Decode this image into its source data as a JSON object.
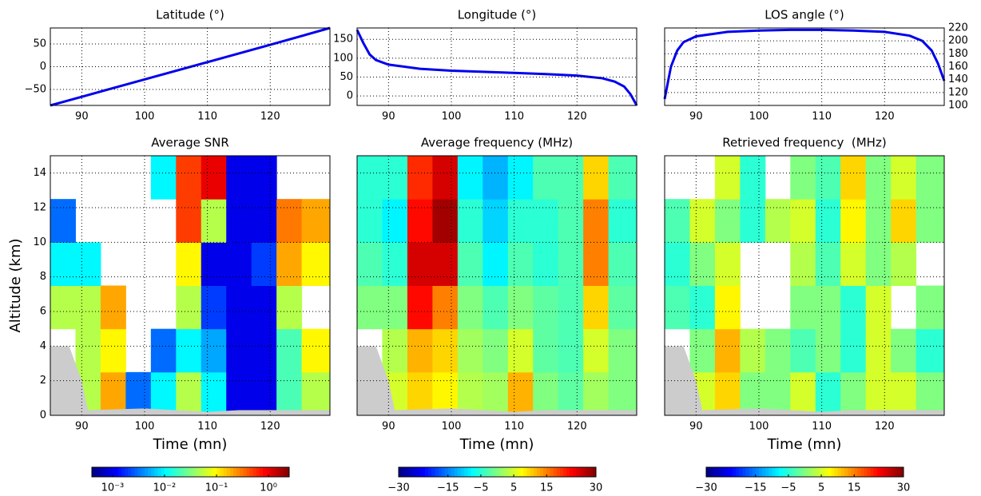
{
  "chart_data": [
    {
      "type": "line",
      "title": "Latitude (°)",
      "color": "#0000ee",
      "x": [
        85,
        90,
        100,
        110,
        120,
        129.5
      ],
      "values": [
        -85,
        -66,
        -28,
        10,
        48,
        85
      ],
      "xlim": [
        85,
        129.5
      ],
      "xticks": [
        90,
        100,
        110,
        120
      ],
      "ylim": [
        -85,
        85
      ],
      "yticks": [
        {
          "value": -50,
          "label": "−50"
        },
        0,
        50
      ],
      "yaxis": "left",
      "grid": true
    },
    {
      "type": "line",
      "title": "Longitude (°)",
      "color": "#0000ee",
      "x": [
        85,
        86,
        87,
        88,
        90,
        95,
        100,
        105,
        110,
        115,
        120,
        124,
        126,
        127.5,
        128.5,
        129.5
      ],
      "values": [
        175,
        140,
        110,
        95,
        83,
        72,
        67,
        64,
        61,
        58,
        54,
        47,
        38,
        25,
        5,
        -25
      ],
      "xlim": [
        85,
        129.5
      ],
      "xticks": [
        90,
        100,
        110,
        120
      ],
      "ylim": [
        -25,
        180
      ],
      "yticks": [
        0,
        50,
        100,
        150
      ],
      "yaxis": "left",
      "grid": true
    },
    {
      "type": "line",
      "title": "LOS angle (°)",
      "color": "#0000ee",
      "x": [
        85,
        86,
        87,
        88,
        90,
        95,
        100,
        105,
        110,
        115,
        120,
        124,
        126,
        127.5,
        128.5,
        129.5
      ],
      "values": [
        110,
        160,
        185,
        198,
        207,
        214,
        216,
        217,
        217,
        216,
        214,
        208,
        200,
        185,
        165,
        138
      ],
      "xlim": [
        85,
        129.5
      ],
      "xticks": [
        90,
        100,
        110,
        120
      ],
      "ylim": [
        100,
        220
      ],
      "yticks": [
        100,
        120,
        140,
        160,
        180,
        200,
        220
      ],
      "yaxis": "right",
      "grid": true
    },
    {
      "type": "heatmap",
      "title": "Average SNR",
      "xlabel": "Time (mn)",
      "ylabel": "Altitude (km)",
      "xbins": [
        85,
        89,
        93,
        97,
        101,
        105,
        109,
        113,
        117,
        121,
        125,
        129.5
      ],
      "ybins": [
        0,
        2.5,
        5,
        7.5,
        10,
        12.5,
        15
      ],
      "z": [
        [
          null,
          0.05,
          0.2,
          0.003,
          0.01,
          0.05,
          0.01,
          0.001,
          0.001,
          0.02,
          0.05
        ],
        [
          null,
          0.05,
          0.1,
          null,
          0.003,
          0.01,
          0.005,
          0.001,
          0.001,
          0.02,
          0.1
        ],
        [
          0.05,
          0.05,
          0.2,
          null,
          null,
          0.05,
          0.002,
          0.001,
          0.001,
          0.05,
          null
        ],
        [
          0.01,
          0.01,
          null,
          null,
          null,
          0.1,
          0.001,
          0.001,
          0.002,
          0.2,
          0.1
        ],
        [
          0.003,
          null,
          null,
          null,
          null,
          0.5,
          0.05,
          0.001,
          0.001,
          0.3,
          0.2
        ],
        [
          null,
          null,
          null,
          null,
          0.01,
          0.5,
          1,
          0.001,
          0.001,
          null,
          null
        ]
      ],
      "colormap": "jet",
      "ground": {
        "color": "#cccccc",
        "x": [
          85,
          88,
          89,
          90,
          91,
          100,
          110,
          115,
          120,
          129.5
        ],
        "values": [
          4,
          4,
          3,
          2,
          0.3,
          0.4,
          0.2,
          0.3,
          0.3,
          0.3
        ]
      },
      "xlim": [
        85,
        129.5
      ],
      "xticks": [
        90,
        100,
        110,
        120
      ],
      "ylim": [
        0,
        15
      ],
      "yticks": [
        0,
        2,
        4,
        6,
        8,
        10,
        12,
        14
      ],
      "yticklabels": true,
      "grid": true,
      "colorbar": {
        "log": true,
        "clim": [
          0.0004,
          2.5
        ],
        "ticks": [
          {
            "value": 0.001,
            "label": "10⁻³"
          },
          {
            "value": 0.01,
            "label": "10⁻²"
          },
          {
            "value": 0.1,
            "label": "10⁻¹"
          },
          {
            "value": 1,
            "label": "10⁰"
          }
        ]
      }
    },
    {
      "type": "heatmap",
      "title": "Average frequency (MHz)",
      "xlabel": "Time (mn)",
      "xbins": [
        85,
        89,
        93,
        97,
        101,
        105,
        109,
        113,
        117,
        121,
        125,
        129.5
      ],
      "ybins": [
        0,
        2.5,
        5,
        7.5,
        10,
        12.5,
        15
      ],
      "z": [
        [
          null,
          5,
          10,
          8,
          3,
          2,
          12,
          0,
          -2,
          2,
          0
        ],
        [
          null,
          3,
          12,
          10,
          2,
          0,
          5,
          -2,
          -3,
          5,
          0
        ],
        [
          0,
          0,
          22,
          15,
          0,
          -3,
          0,
          -2,
          -3,
          10,
          -2
        ],
        [
          -3,
          -5,
          25,
          25,
          -3,
          -8,
          -3,
          -5,
          -3,
          15,
          -3
        ],
        [
          -5,
          -8,
          22,
          28,
          -5,
          -10,
          -5,
          -5,
          -3,
          15,
          -5
        ],
        [
          -5,
          -5,
          20,
          25,
          -8,
          -12,
          -8,
          -3,
          -3,
          10,
          -3
        ]
      ],
      "colormap": "jet",
      "ground": {
        "color": "#cccccc",
        "x": [
          85,
          88,
          89,
          90,
          91,
          100,
          110,
          115,
          120,
          129.5
        ],
        "values": [
          4,
          4,
          3,
          2,
          0.3,
          0.4,
          0.2,
          0.3,
          0.3,
          0.3
        ]
      },
      "xlim": [
        85,
        129.5
      ],
      "xticks": [
        90,
        100,
        110,
        120
      ],
      "ylim": [
        0,
        15
      ],
      "yticks": [
        0,
        2,
        4,
        6,
        8,
        10,
        12,
        14
      ],
      "yticklabels": false,
      "grid": true,
      "colorbar": {
        "log": false,
        "clim": [
          -30,
          30
        ],
        "ticks": [
          {
            "value": -30,
            "label": "−30"
          },
          {
            "value": -15,
            "label": "−15"
          },
          {
            "value": -5,
            "label": "−5"
          },
          5,
          15,
          30
        ]
      }
    },
    {
      "type": "heatmap",
      "title": "Retrieved frequency  (MHz)",
      "xlabel": "Time (mn)",
      "xbins": [
        85,
        89,
        93,
        97,
        101,
        105,
        109,
        113,
        117,
        121,
        125,
        129.5
      ],
      "ybins": [
        0,
        2.5,
        5,
        7.5,
        10,
        12.5,
        15
      ],
      "z": [
        [
          null,
          5,
          10,
          0,
          0,
          5,
          -5,
          0,
          5,
          5,
          0
        ],
        [
          null,
          0,
          12,
          3,
          0,
          -3,
          0,
          -5,
          5,
          0,
          -5
        ],
        [
          -3,
          -5,
          8,
          null,
          null,
          0,
          0,
          -5,
          5,
          null,
          0
        ],
        [
          -5,
          0,
          5,
          null,
          null,
          3,
          -3,
          5,
          0,
          3,
          null
        ],
        [
          -3,
          5,
          0,
          -5,
          3,
          5,
          -5,
          8,
          0,
          10,
          0
        ],
        [
          null,
          null,
          5,
          -5,
          null,
          0,
          -3,
          10,
          0,
          5,
          0
        ]
      ],
      "colormap": "jet",
      "ground": {
        "color": "#cccccc",
        "x": [
          85,
          88,
          89,
          90,
          91,
          100,
          110,
          115,
          120,
          129.5
        ],
        "values": [
          4,
          4,
          3,
          2,
          0.3,
          0.4,
          0.2,
          0.3,
          0.3,
          0.3
        ]
      },
      "xlim": [
        85,
        129.5
      ],
      "xticks": [
        90,
        100,
        110,
        120
      ],
      "ylim": [
        0,
        15
      ],
      "yticks": [
        0,
        2,
        4,
        6,
        8,
        10,
        12,
        14
      ],
      "yticklabels": false,
      "grid": true,
      "colorbar": {
        "log": false,
        "clim": [
          -30,
          30
        ],
        "ticks": [
          {
            "value": -30,
            "label": "−30"
          },
          {
            "value": -15,
            "label": "−15"
          },
          {
            "value": -5,
            "label": "−5"
          },
          5,
          15,
          30
        ]
      }
    }
  ]
}
